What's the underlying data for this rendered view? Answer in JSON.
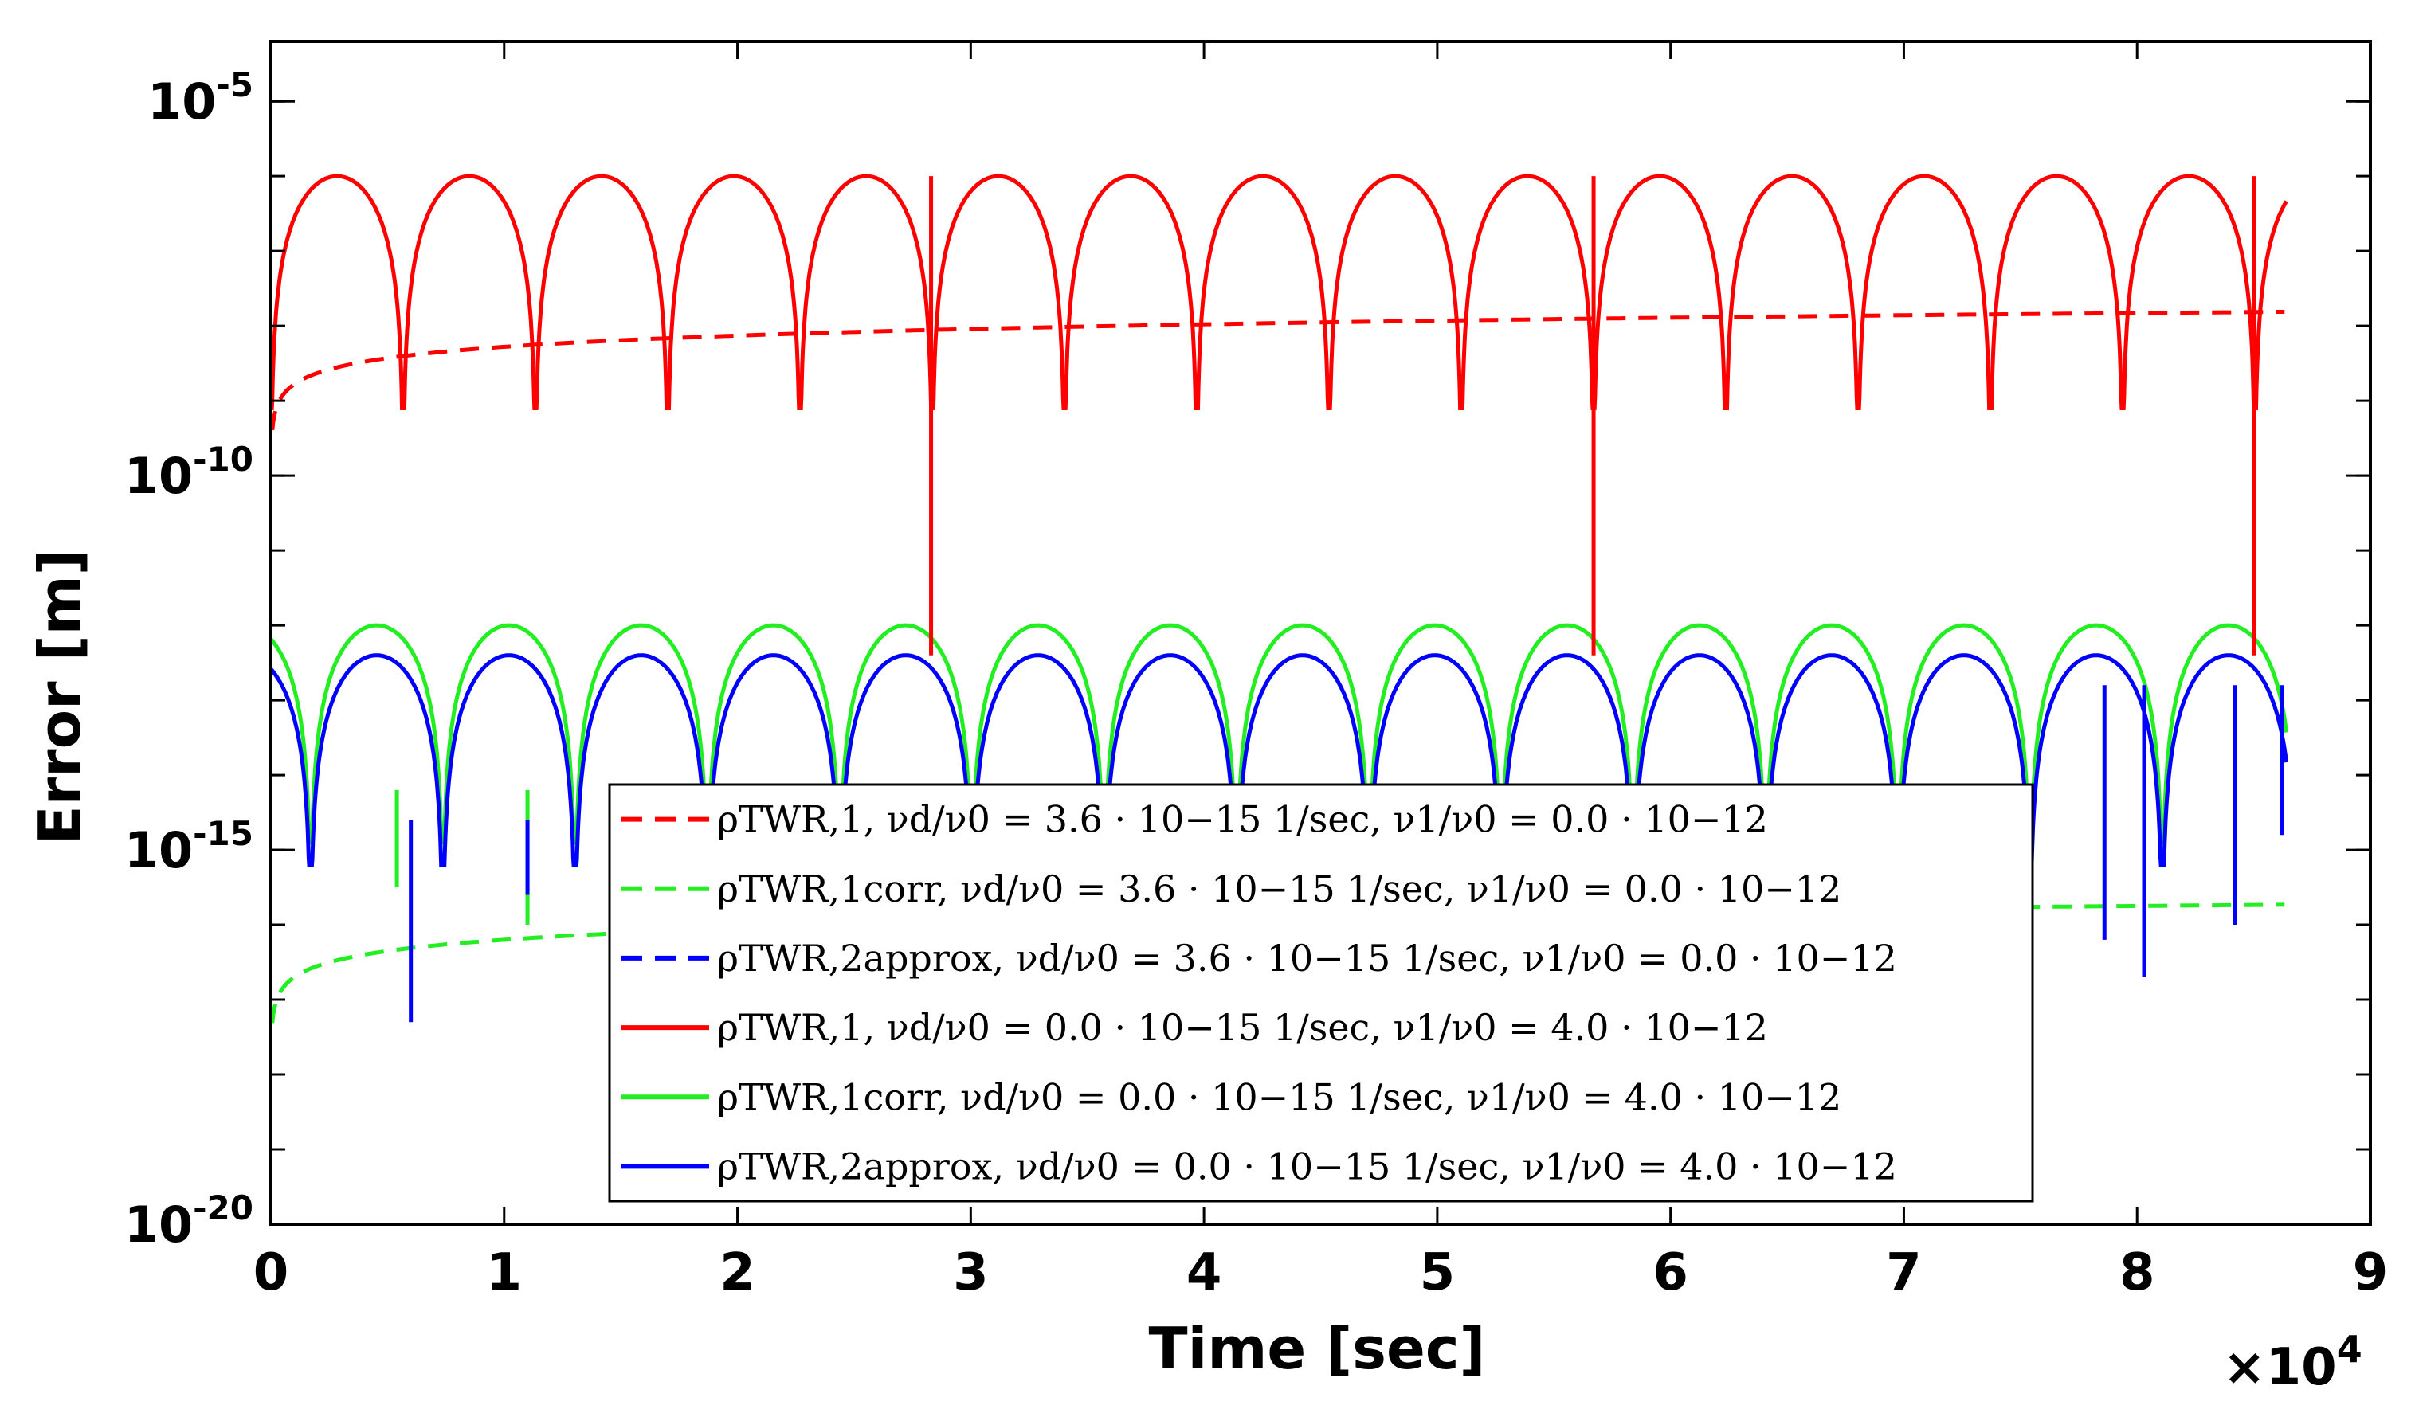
{
  "chart_data": {
    "type": "line",
    "title": "",
    "xlabel": "Time [sec]",
    "ylabel": "Error [m]",
    "x_multiplier_label": "×10",
    "x_multiplier_exponent": "4",
    "xlim": [
      0,
      90000
    ],
    "ylim_log10": [
      -20,
      -4.2
    ],
    "yscale": "log",
    "grid": false,
    "legend_location": "lower-center",
    "x_ticks": [
      {
        "value": 0,
        "label": "0"
      },
      {
        "value": 10000,
        "label": "1"
      },
      {
        "value": 20000,
        "label": "2"
      },
      {
        "value": 30000,
        "label": "3"
      },
      {
        "value": 40000,
        "label": "4"
      },
      {
        "value": 50000,
        "label": "5"
      },
      {
        "value": 60000,
        "label": "6"
      },
      {
        "value": 70000,
        "label": "7"
      },
      {
        "value": 80000,
        "label": "8"
      },
      {
        "value": 90000,
        "label": "9"
      }
    ],
    "y_ticks": [
      {
        "exp": -5,
        "base": "10",
        "sup": "-5"
      },
      {
        "exp": -10,
        "base": "10",
        "sup": "-10"
      },
      {
        "exp": -15,
        "base": "10",
        "sup": "-15"
      },
      {
        "exp": -20,
        "base": "10",
        "sup": "-20"
      }
    ],
    "series": [
      {
        "name": "ρ_TWR,1 drift",
        "color": "#ff0000",
        "dash": true,
        "model": "drift",
        "a_log10": -10.28,
        "b_log10": 5.81e-05
      },
      {
        "name": "ρ_TWR,1corr drift",
        "color": "#22ee22",
        "dash": true,
        "model": "drift",
        "a_log10": -18.2,
        "b_log10": 5.81e-05
      },
      {
        "name": "ρ_TWR,2approx drift",
        "color": "#0000ff",
        "dash": true,
        "model": "hidden"
      },
      {
        "name": "ρ_TWR,1 osc",
        "color": "#ff0000",
        "dash": false,
        "model": "osc",
        "peak_log10": -6.0,
        "period": 5670,
        "phase": 0,
        "dip_log10": -9.1
      },
      {
        "name": "ρ_TWR,1corr osc",
        "color": "#22ee22",
        "dash": false,
        "model": "osc",
        "peak_log10": -12.0,
        "period": 5670,
        "phase": 1700,
        "dip_log10": -14.9
      },
      {
        "name": "ρ_TWR,2approx osc",
        "color": "#0000ff",
        "dash": false,
        "model": "osc",
        "peak_log10": -12.4,
        "period": 5670,
        "phase": 1700,
        "dip_log10": -15.2
      }
    ],
    "spikes": [
      {
        "color": "#ff0000",
        "x": 28300,
        "top_log10": -6.0,
        "bottom_log10": -12.4
      },
      {
        "color": "#ff0000",
        "x": 56700,
        "top_log10": -6.0,
        "bottom_log10": -12.4
      },
      {
        "color": "#ff0000",
        "x": 85000,
        "top_log10": -6.0,
        "bottom_log10": -12.4
      },
      {
        "color": "#22ee22",
        "x": 5400,
        "top_log10": -14.2,
        "bottom_log10": -15.5
      },
      {
        "color": "#22ee22",
        "x": 11000,
        "top_log10": -14.2,
        "bottom_log10": -16.0
      },
      {
        "color": "#0000ff",
        "x": 6000,
        "top_log10": -14.6,
        "bottom_log10": -17.3
      },
      {
        "color": "#0000ff",
        "x": 11000,
        "top_log10": -14.6,
        "bottom_log10": -15.6
      },
      {
        "color": "#0000ff",
        "x": 78600,
        "top_log10": -12.8,
        "bottom_log10": -16.2
      },
      {
        "color": "#0000ff",
        "x": 80300,
        "top_log10": -12.8,
        "bottom_log10": -16.7
      },
      {
        "color": "#0000ff",
        "x": 84200,
        "top_log10": -12.8,
        "bottom_log10": -16.0
      },
      {
        "color": "#0000ff",
        "x": 86200,
        "top_log10": -12.8,
        "bottom_log10": -14.8
      }
    ],
    "legend": [
      {
        "color": "#ff0000",
        "dash": true,
        "label": "ρTWR,1, νd/ν0 = 3.6 · 10−15 1/sec, ν1/ν0 = 0.0 · 10−12"
      },
      {
        "color": "#22ee22",
        "dash": true,
        "label": "ρTWR,1corr, νd/ν0 = 3.6 · 10−15 1/sec, ν1/ν0 = 0.0 · 10−12"
      },
      {
        "color": "#0000ff",
        "dash": true,
        "label": "ρTWR,2approx, νd/ν0 = 3.6 · 10−15 1/sec, ν1/ν0 = 0.0 · 10−12"
      },
      {
        "color": "#ff0000",
        "dash": false,
        "label": "ρTWR,1, νd/ν0 = 0.0 · 10−15 1/sec, ν1/ν0 = 4.0 · 10−12"
      },
      {
        "color": "#22ee22",
        "dash": false,
        "label": "ρTWR,1corr, νd/ν0 = 0.0 · 10−15 1/sec, ν1/ν0 = 4.0 · 10−12"
      },
      {
        "color": "#0000ff",
        "dash": false,
        "label": "ρTWR,2approx, νd/ν0 = 0.0 · 10−15 1/sec, ν1/ν0 = 4.0 · 10−12"
      }
    ]
  }
}
